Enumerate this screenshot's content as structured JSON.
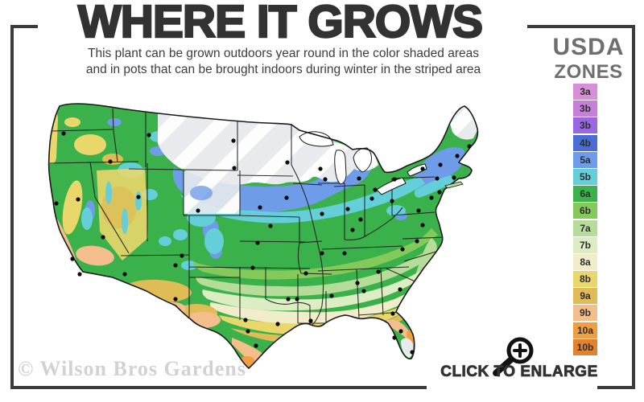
{
  "header": {
    "title": "WHERE IT GROWS",
    "subtitle_line1": "This plant can be grown outdoors year round in the color shaded areas",
    "subtitle_line2": "and in pots that can be brought indoors during winter in the striped area"
  },
  "legend": {
    "title_line1": "USDA",
    "title_line2": "ZONES",
    "zones": [
      {
        "label": "3a",
        "color": "#d78fd7"
      },
      {
        "label": "3b",
        "color": "#c77fda"
      },
      {
        "label": "3b",
        "color": "#9868e2"
      },
      {
        "label": "4b",
        "color": "#4a6cd6"
      },
      {
        "label": "5a",
        "color": "#6f9ce8"
      },
      {
        "label": "5b",
        "color": "#64cfd8"
      },
      {
        "label": "6a",
        "color": "#3bb14b"
      },
      {
        "label": "6b",
        "color": "#84ca5b"
      },
      {
        "label": "7a",
        "color": "#b5dc98"
      },
      {
        "label": "7b",
        "color": "#dcedc3"
      },
      {
        "label": "8a",
        "color": "#f1ecca"
      },
      {
        "label": "8b",
        "color": "#e9d76c"
      },
      {
        "label": "9a",
        "color": "#dfbc55"
      },
      {
        "label": "9b",
        "color": "#f4be8c"
      },
      {
        "label": "10a",
        "color": "#ef9f41"
      },
      {
        "label": "10b",
        "color": "#e1832e"
      }
    ]
  },
  "map": {
    "cold_area_color": "#e8eaed",
    "stripe_color": "#ffffff",
    "water_color": "#ffffff",
    "outline_color": "#1a1a1a"
  },
  "footer": {
    "watermark": "© Wilson Bros Gardens",
    "enlarge_label": "CLICK TO ENLARGE"
  }
}
